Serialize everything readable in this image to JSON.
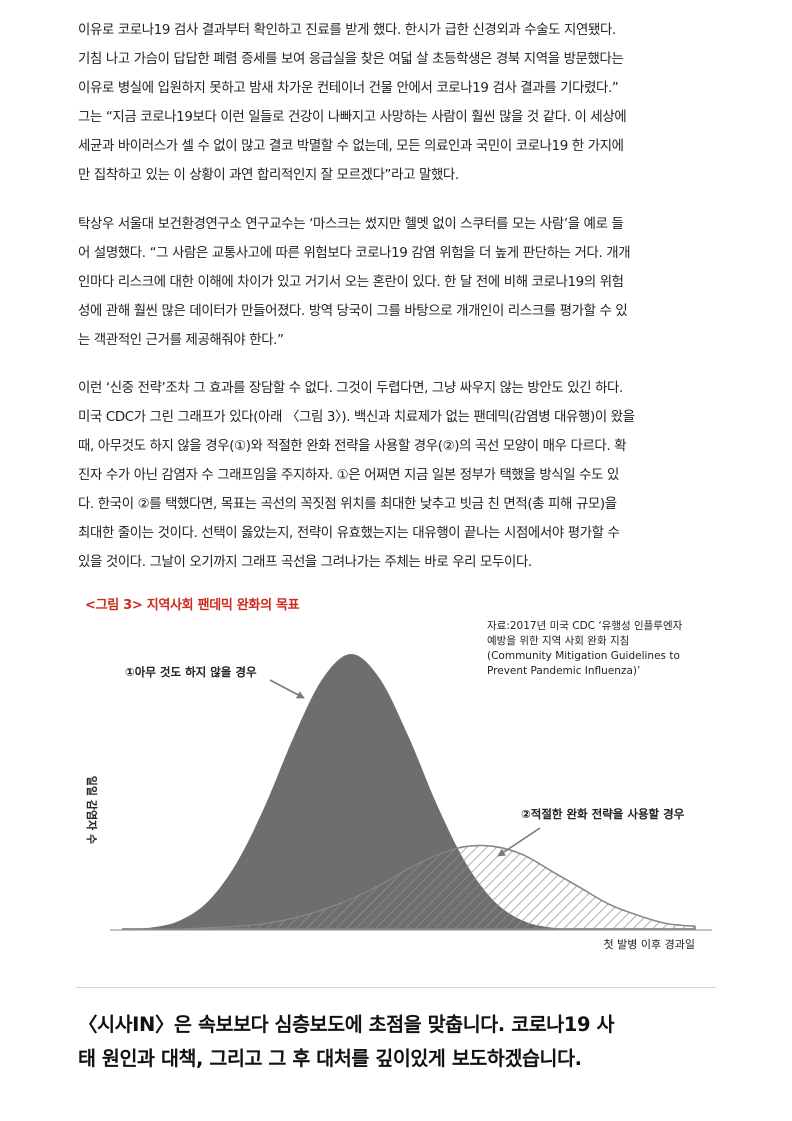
{
  "article": {
    "p1": [
      "이유로 코로나19 검사 결과부터 확인하고 진료를 받게 했다. 한시가 급한 신경외과 수술도 지연됐다.",
      "기침 나고 가슴이 답답한 폐렴 증세를 보여 응급실을 찾은 여덟 살 초등학생은 경북 지역을 방문했다는",
      "이유로 병실에 입원하지 못하고 밤새 차가운 컨테이너 건물 안에서 코로나19 검사 결과를 기다렸다.”",
      "그는 “지금 코로나19보다 이런 일들로 건강이 나빠지고 사망하는 사람이 훨씬 많을 것 같다. 이 세상에",
      "세균과 바이러스가 셀 수 없이 많고 결코 박멸할 수 없는데, 모든 의료인과 국민이 코로나19 한 가지에",
      "만 집착하고 있는 이 상황이 과연 합리적인지 잘 모르겠다”라고 말했다."
    ],
    "p2": [
      "탁상우 서울대 보건환경연구소 연구교수는 ‘마스크는 썼지만 헬멧 없이 스쿠터를 모는 사람’을 예로 들",
      "어 설명했다. “그 사람은 교통사고에 따른 위험보다 코로나19 감염 위험을 더 높게 판단하는 거다. 개개",
      "인마다 리스크에 대한 이해에 차이가 있고 거기서 오는 혼란이 있다. 한 달 전에 비해 코로나19의 위험",
      "성에 관해 훨씬 많은 데이터가 만들어졌다. 방역 당국이 그를 바탕으로 개개인이 리스크를 평가할 수 있",
      "는 객관적인 근거를 제공해줘야 한다.”"
    ],
    "p3": [
      "이런 ‘신중 전략’조차 그 효과를 장담할 수 없다. 그것이 두렵다면, 그냥 싸우지 않는 방안도 있긴 하다.",
      "미국 CDC가 그린 그래프가 있다(아래 〈그림 3〉). 백신과 치료제가 없는 팬데믹(감염병 대유행)이 왔을",
      "때, 아무것도 하지 않을 경우(①)와 적절한 완화 전략을 사용할 경우(②)의 곡선 모양이 매우 다르다. 확",
      "진자 수가 아닌 감염자 수 그래프임을 주지하자. ①은 어쩌면 지금 일본 정부가 택했을 방식일 수도 있",
      "다. 한국이 ②를 택했다면, 목표는 곡선의 꼭짓점 위치를 최대한 낮추고 빗금 친 면적(총 피해 규모)을",
      "최대한 줄이는 것이다. 선택이 옳았는지, 전략이 유효했는지는 대유행이 끝나는 시점에서야 평가할 수",
      "있을 것이다. 그날이 오기까지 그래프 곡선을 그려나가는 주체는 바로 우리 모두이다."
    ]
  },
  "figure": {
    "caption": "<그림 3> 지역사회 팬데믹 완화의 목표",
    "source_lines": [
      "자료:2017년 미국 CDC ‘유행성 인플루엔자",
      "예방을 위한 지역 사회 완화 지침",
      "(Community Mitigation Guidelines to",
      "Prevent Pandemic Influenza)’"
    ]
  },
  "chart_data": {
    "type": "area",
    "title": "지역사회 팬데믹 완화의 목표",
    "xlabel": "첫 발병 이후 경과일",
    "ylabel": "일일 감염자 수",
    "axes_numeric_labels": false,
    "grid": false,
    "note": "No numeric ticks are printed; values are relative (peak of curve ① = 1.0) on a 0–100 day-index scale.",
    "x": [
      0,
      5,
      10,
      15,
      20,
      25,
      30,
      35,
      40,
      45,
      50,
      55,
      60,
      65,
      70,
      75,
      80,
      85,
      90,
      95,
      100
    ],
    "series": [
      {
        "name": "①아무 것도 하지 않을 경우",
        "fill": "solid",
        "color": "#6e6e6e",
        "values": [
          0.0,
          0.005,
          0.03,
          0.1,
          0.24,
          0.45,
          0.7,
          0.91,
          1.0,
          0.91,
          0.7,
          0.45,
          0.24,
          0.1,
          0.03,
          0.005,
          0.0,
          0.0,
          0.0,
          0.0,
          0.0
        ]
      },
      {
        "name": "②적절한 완화 전략을 사용할 경우",
        "fill": "hatched",
        "color": "#5a5a5a",
        "values": [
          0.0,
          0.0,
          0.0,
          0.005,
          0.01,
          0.02,
          0.04,
          0.07,
          0.11,
          0.16,
          0.22,
          0.27,
          0.3,
          0.3,
          0.27,
          0.21,
          0.15,
          0.09,
          0.05,
          0.02,
          0.01
        ]
      }
    ],
    "annotations": [
      {
        "text": "①아무 것도 하지 않을 경우",
        "points_to": "peak of series 1"
      },
      {
        "text": "②적절한 완화 전략을 사용할 경우",
        "points_to": "peak of series 2"
      }
    ]
  },
  "footer": {
    "tagline": [
      "〈시사IN〉은 속보보다 심층보도에 초점을 맞춥니다. 코로나19 사",
      "태 원인과 대책, 그리고 그 후 대처를 깊이있게 보도하겠습니다."
    ]
  }
}
